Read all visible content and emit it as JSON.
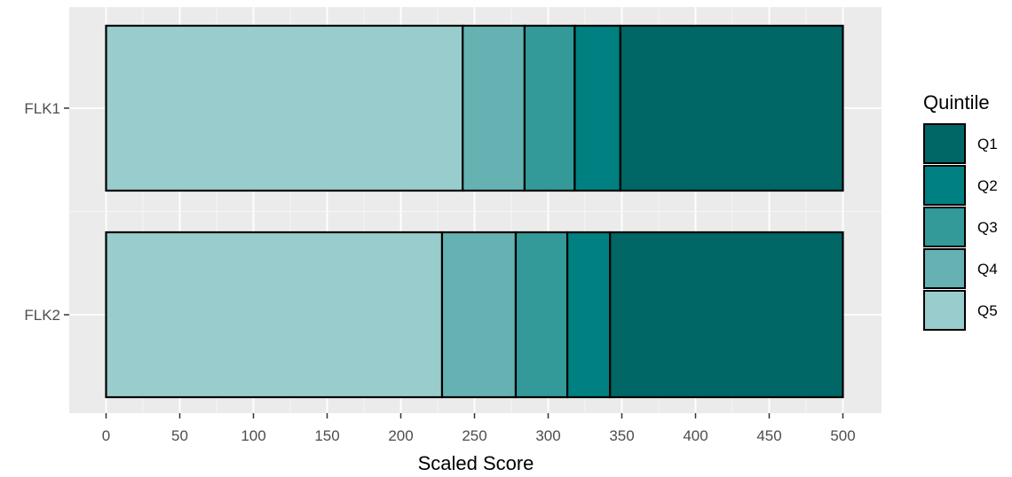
{
  "chart_data": {
    "type": "bar",
    "orientation": "horizontal",
    "stacked": true,
    "xlabel": "Scaled Score",
    "ylabel": "",
    "xlim": [
      0,
      500
    ],
    "x_ticks": [
      0,
      50,
      100,
      150,
      200,
      250,
      300,
      350,
      400,
      450,
      500
    ],
    "categories": [
      "FLK1",
      "FLK2"
    ],
    "segment_order": [
      "Q5",
      "Q4",
      "Q3",
      "Q2",
      "Q1"
    ],
    "segments": {
      "FLK1": [
        {
          "quintile": "Q5",
          "start": 0,
          "end": 242
        },
        {
          "quintile": "Q4",
          "start": 242,
          "end": 284
        },
        {
          "quintile": "Q3",
          "start": 284,
          "end": 318
        },
        {
          "quintile": "Q2",
          "start": 318,
          "end": 349
        },
        {
          "quintile": "Q1",
          "start": 349,
          "end": 500
        }
      ],
      "FLK2": [
        {
          "quintile": "Q5",
          "start": 0,
          "end": 228
        },
        {
          "quintile": "Q4",
          "start": 228,
          "end": 278
        },
        {
          "quintile": "Q3",
          "start": 278,
          "end": 313
        },
        {
          "quintile": "Q2",
          "start": 313,
          "end": 342
        },
        {
          "quintile": "Q1",
          "start": 342,
          "end": 500
        }
      ]
    },
    "legend": {
      "title": "Quintile",
      "position": "right",
      "items": [
        {
          "label": "Q1",
          "color": "#006666"
        },
        {
          "label": "Q2",
          "color": "#008080"
        },
        {
          "label": "Q3",
          "color": "#339999"
        },
        {
          "label": "Q4",
          "color": "#66b2b2"
        },
        {
          "label": "Q5",
          "color": "#99cccc"
        }
      ]
    },
    "grid": true,
    "panel_background": "#ebebeb",
    "bar_outline": "#000000"
  }
}
